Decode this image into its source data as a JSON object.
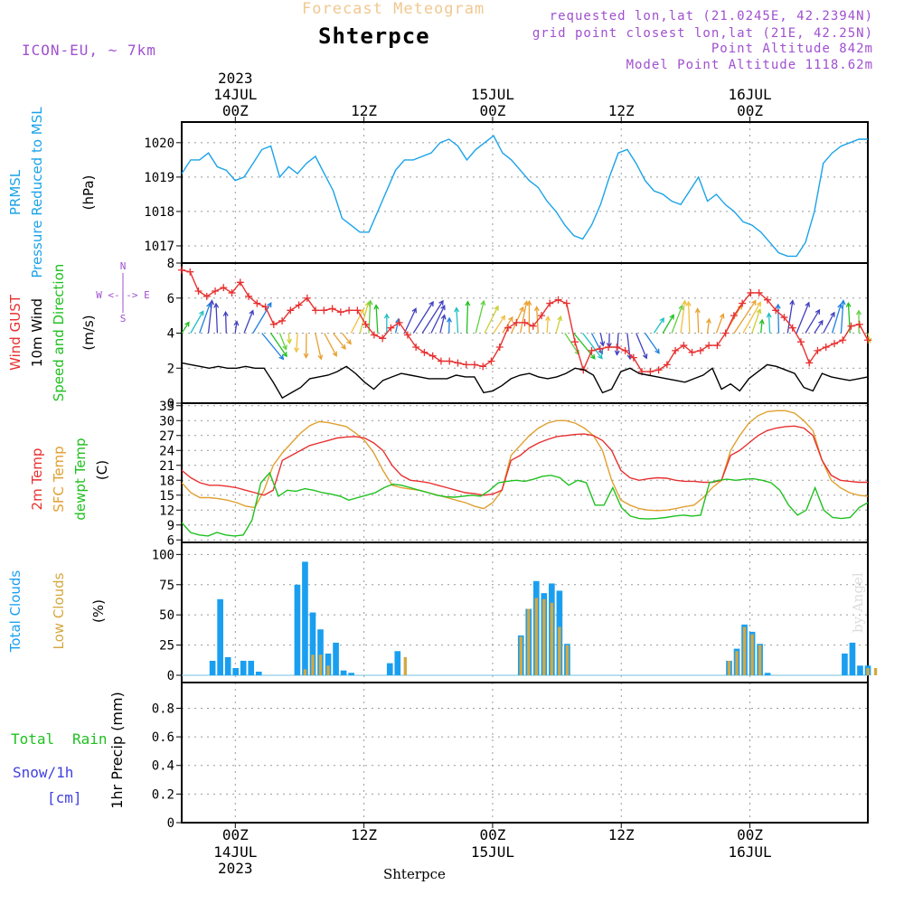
{
  "header": {
    "title": "Forecast Meteogram",
    "station": "Shterpce",
    "model": "ICON-EU, ~ 7km",
    "requested": "requested lon,lat (21.0245E, 42.2394N)",
    "grid_point": "grid point closest lon,lat (21E, 42.25N)",
    "point_altitude": "Point Altitude 842m",
    "model_altitude": "Model Point Altitude 1118.62m"
  },
  "footer": {
    "station": "Shterpce",
    "credit": "by Angel"
  },
  "colors": {
    "pressure": "#1aa3e8",
    "gust": "#e83030",
    "wind": "#000000",
    "temp2m": "#e83030",
    "sfc": "#e0a030",
    "dewpt": "#20c020",
    "total_clouds": "#1a9ff0",
    "low_clouds": "#d4a840",
    "rain": "#20c020",
    "snow": "#4040e0",
    "title": "#f0c890",
    "purple": "#a050d0"
  },
  "chart_data": {
    "type": "line",
    "x_unit": "hours from 2023-07-14 00Z",
    "x_range": [
      -5,
      59
    ],
    "time_axis": {
      "top_dates": [
        {
          "hour": 0,
          "label": "14JUL",
          "year": "2023"
        },
        {
          "hour": 24,
          "label": "15JUL"
        },
        {
          "hour": 48,
          "label": "16JUL"
        }
      ],
      "hour_ticks": [
        {
          "hour": 0,
          "label": "00Z"
        },
        {
          "hour": 12,
          "label": "12Z"
        },
        {
          "hour": 24,
          "label": "00Z"
        },
        {
          "hour": 36,
          "label": "12Z"
        },
        {
          "hour": 48,
          "label": "00Z"
        },
        {
          "hour": 60,
          "label": "12Z"
        }
      ],
      "bottom_dates": [
        {
          "hour": 0,
          "label": "14JUL",
          "year": "2023"
        },
        {
          "hour": 24,
          "label": "15JUL"
        },
        {
          "hour": 48,
          "label": "16JUL"
        }
      ]
    },
    "panels": [
      {
        "id": "pressure",
        "labels": [
          "PRMSL",
          "Pressure Reduced to MSL"
        ],
        "unit": "(hPa)",
        "ylim": [
          1016.5,
          1020.6
        ],
        "yticks": [
          "1017",
          "1018",
          "1019",
          "1020"
        ],
        "series": [
          {
            "name": "PRMSL",
            "x_start": -5,
            "values": [
              1019.1,
              1019.5,
              1019.5,
              1019.7,
              1019.3,
              1019.2,
              1018.9,
              1019.0,
              1019.4,
              1019.8,
              1019.9,
              1019.0,
              1019.3,
              1019.1,
              1019.4,
              1019.6,
              1019.1,
              1018.6,
              1017.8,
              1017.6,
              1017.4,
              1017.4,
              1018.0,
              1018.6,
              1019.2,
              1019.5,
              1019.5,
              1019.6,
              1019.7,
              1020.0,
              1020.1,
              1019.9,
              1019.5,
              1019.8,
              1020.0,
              1020.2,
              1019.7,
              1019.5,
              1019.2,
              1018.9,
              1018.7,
              1018.3,
              1018.0,
              1017.6,
              1017.3,
              1017.2,
              1017.6,
              1018.2,
              1019.0,
              1019.7,
              1019.8,
              1019.4,
              1018.9,
              1018.6,
              1018.5,
              1018.3,
              1018.2,
              1018.6,
              1019.0,
              1018.3,
              1018.5,
              1018.2,
              1018.0,
              1017.7,
              1017.6,
              1017.4,
              1017.1,
              1016.8,
              1016.7,
              1016.7,
              1017.1,
              1018.0,
              1019.4,
              1019.7,
              1019.9,
              1020.0,
              1020.1,
              1020.1
            ]
          }
        ]
      },
      {
        "id": "wind",
        "labels": [
          "Wind GUST",
          "10m Wind",
          "Speed and Direction"
        ],
        "unit": "(m/s)",
        "compass": "W <-|-> E",
        "compass_n": "N",
        "compass_s": "S",
        "ylim": [
          0,
          8
        ],
        "yticks": [
          "0",
          "2",
          "4",
          "6",
          "8"
        ],
        "series": [
          {
            "name": "Wind GUST",
            "x_start": -5,
            "values": [
              7.6,
              7.5,
              6.4,
              6.1,
              6.4,
              6.6,
              6.3,
              6.9,
              6.1,
              5.7,
              5.5,
              4.5,
              4.7,
              5.3,
              5.6,
              6.0,
              5.3,
              5.3,
              5.4,
              5.2,
              5.3,
              5.3,
              4.5,
              3.9,
              3.7,
              4.3,
              4.6,
              3.9,
              3.2,
              2.9,
              2.7,
              2.4,
              2.4,
              2.3,
              2.2,
              2.2,
              2.1,
              2.4,
              3.2,
              4.3,
              4.6,
              4.6,
              4.4,
              5.0,
              5.7,
              5.9,
              5.7,
              3.5,
              1.9,
              3.0,
              3.1,
              3.2,
              3.2,
              3.0,
              2.6,
              1.8,
              1.8,
              1.9,
              2.2,
              3.0,
              3.3,
              2.9,
              3.0,
              3.3,
              3.3,
              4.0,
              5.0,
              5.7,
              6.3,
              6.3,
              5.9,
              5.3,
              4.9,
              4.3,
              3.5,
              2.3,
              3.0,
              3.2,
              3.4,
              3.6,
              4.4,
              4.5,
              3.6
            ]
          },
          {
            "name": "10m Wind",
            "x_start": -5,
            "values": [
              2.3,
              2.2,
              2.1,
              2.0,
              2.1,
              2.0,
              2.0,
              2.1,
              2.0,
              2.0,
              1.2,
              0.3,
              0.6,
              0.9,
              1.4,
              1.5,
              1.6,
              1.8,
              2.1,
              1.7,
              1.2,
              0.8,
              1.3,
              1.5,
              1.7,
              1.6,
              1.5,
              1.4,
              1.4,
              1.4,
              1.6,
              1.5,
              1.5,
              0.6,
              0.7,
              1.0,
              1.4,
              1.6,
              1.7,
              1.5,
              1.4,
              1.5,
              1.7,
              2.0,
              1.9,
              1.6,
              0.6,
              0.8,
              1.8,
              2.0,
              1.7,
              1.6,
              1.5,
              1.4,
              1.3,
              1.2,
              1.4,
              1.6,
              2.0,
              0.8,
              1.1,
              0.7,
              1.4,
              1.8,
              2.2,
              2.1,
              1.9,
              1.7,
              0.9,
              0.7,
              1.7,
              1.5,
              1.4,
              1.3,
              1.4,
              1.5
            ]
          }
        ]
      },
      {
        "id": "temp",
        "labels": [
          "2m Temp",
          "SFC Temp",
          "dewpt Temp"
        ],
        "unit": "(C)",
        "ylim": [
          5.5,
          33.5
        ],
        "yticks": [
          "6",
          "9",
          "12",
          "15",
          "18",
          "21",
          "24",
          "27",
          "30",
          "33"
        ],
        "series": [
          {
            "name": "2m Temp",
            "x_start": -5,
            "values": [
              20.0,
              18.5,
              17.5,
              17.0,
              17.0,
              16.8,
              16.5,
              16.0,
              15.5,
              15.0,
              16.0,
              22.0,
              23.0,
              24.0,
              25.0,
              25.5,
              26.0,
              26.5,
              26.7,
              26.8,
              26.5,
              25.5,
              24.0,
              21.0,
              19.0,
              18.0,
              17.8,
              17.5,
              17.0,
              16.5,
              16.0,
              15.5,
              15.3,
              15.0,
              15.2,
              16.0,
              22.0,
              23.0,
              24.5,
              25.5,
              26.2,
              26.8,
              27.0,
              27.2,
              27.3,
              27.0,
              26.0,
              24.0,
              20.0,
              18.5,
              18.0,
              18.3,
              18.5,
              18.4,
              18.0,
              17.8,
              17.8,
              17.6,
              17.6,
              18.0,
              23.0,
              24.0,
              25.5,
              27.0,
              28.0,
              28.5,
              28.8,
              28.9,
              28.5,
              27.0,
              22.0,
              19.0,
              18.0,
              17.8,
              17.6,
              17.6
            ]
          },
          {
            "name": "SFC Temp",
            "x_start": -5,
            "values": [
              17.5,
              15.5,
              14.5,
              14.5,
              14.3,
              14.0,
              13.5,
              12.8,
              12.5,
              16.0,
              21.0,
              23.5,
              25.5,
              27.5,
              29.0,
              29.8,
              29.6,
              29.2,
              28.8,
              27.5,
              26.0,
              23.5,
              20.0,
              17.0,
              16.5,
              16.2,
              16.0,
              15.5,
              15.0,
              14.5,
              14.0,
              13.5,
              12.8,
              12.3,
              13.5,
              16.0,
              23.0,
              25.0,
              27.0,
              28.5,
              29.5,
              30.0,
              30.0,
              29.5,
              28.5,
              27.0,
              24.0,
              18.0,
              14.0,
              13.0,
              12.3,
              12.0,
              11.9,
              12.0,
              12.3,
              12.7,
              13.0,
              14.5,
              16.5,
              18.0,
              24.0,
              27.0,
              29.5,
              31.0,
              31.8,
              32.0,
              32.0,
              31.5,
              30.0,
              28.0,
              22.0,
              18.0,
              16.5,
              15.5,
              15.0,
              14.8
            ]
          },
          {
            "name": "dewpt Temp",
            "x_start": -5,
            "values": [
              9.5,
              7.5,
              7.0,
              6.8,
              7.5,
              7.0,
              6.8,
              7.0,
              10.0,
              17.5,
              19.5,
              14.8,
              16.0,
              15.8,
              16.3,
              16.0,
              15.5,
              15.2,
              14.8,
              14.0,
              14.5,
              15.0,
              15.5,
              16.5,
              17.2,
              17.0,
              16.5,
              16.0,
              15.5,
              15.0,
              14.7,
              14.6,
              14.8,
              15.0,
              14.8,
              16.0,
              17.5,
              17.8,
              18.0,
              17.8,
              18.2,
              18.8,
              19.0,
              18.5,
              17.0,
              18.0,
              17.5,
              13.0,
              13.0,
              16.5,
              12.5,
              10.8,
              10.3,
              10.2,
              10.3,
              10.5,
              10.8,
              11.0,
              10.8,
              11.0,
              17.5,
              18.0,
              18.2,
              18.0,
              18.2,
              18.3,
              18.0,
              17.5,
              16.0,
              13.0,
              11.0,
              12.0,
              16.5,
              12.0,
              10.5,
              10.3,
              10.5,
              12.5,
              13.5
            ]
          }
        ]
      },
      {
        "id": "clouds",
        "labels": [
          "Total Clouds",
          "Low Clouds"
        ],
        "unit": "(%)",
        "type": "bar",
        "ylim": [
          -6,
          110
        ],
        "yticks": [
          "0",
          "25",
          "50",
          "75",
          "100"
        ],
        "series": [
          {
            "name": "Total Clouds",
            "x_start": -5,
            "values": [
              0,
              0,
              0,
              0,
              12,
              63,
              15,
              6,
              12,
              12,
              3,
              0,
              0,
              0,
              0,
              75,
              94,
              52,
              38,
              18,
              27,
              4,
              2,
              0,
              0,
              0,
              0,
              10,
              20,
              0,
              0,
              0,
              0,
              0,
              0,
              0,
              0,
              0,
              0,
              0,
              0,
              0,
              0,
              0,
              33,
              55,
              78,
              68,
              76,
              70,
              26,
              0,
              0,
              0,
              0,
              0,
              0,
              0,
              0,
              0,
              0,
              0,
              0,
              0,
              0,
              0,
              0,
              0,
              0,
              0,
              0,
              12,
              22,
              42,
              36,
              26,
              2,
              0,
              0,
              0,
              0,
              0,
              0,
              0,
              0,
              0,
              18,
              27,
              8,
              8
            ]
          },
          {
            "name": "Low Clouds",
            "x_start": -5,
            "values": [
              0,
              0,
              0,
              0,
              0,
              0,
              0,
              0,
              0,
              0,
              0,
              0,
              0,
              0,
              0,
              0,
              5,
              17,
              17,
              8,
              0,
              0,
              0,
              0,
              0,
              0,
              0,
              0,
              0,
              15,
              0,
              0,
              0,
              0,
              0,
              0,
              0,
              0,
              0,
              0,
              0,
              0,
              0,
              0,
              32,
              55,
              64,
              63,
              60,
              40,
              25,
              0,
              0,
              0,
              0,
              0,
              0,
              0,
              0,
              0,
              0,
              0,
              0,
              0,
              0,
              0,
              0,
              0,
              0,
              0,
              0,
              12,
              20,
              40,
              34,
              25,
              0,
              0,
              0,
              0,
              0,
              0,
              0,
              0,
              0,
              0,
              0,
              0,
              0,
              6,
              6
            ]
          }
        ]
      },
      {
        "id": "precip",
        "labels": [
          "Total",
          "Rain",
          "Snow/1h",
          "[cm]"
        ],
        "unit": "1hr Precip (mm)",
        "type": "bar",
        "ylim": [
          0,
          0.98
        ],
        "yticks": [
          "0",
          "0.2",
          "0.4",
          "0.6",
          "0.8"
        ],
        "series": [
          {
            "name": "Total Rain",
            "values": []
          },
          {
            "name": "Snow/1h",
            "values": []
          }
        ]
      }
    ]
  }
}
